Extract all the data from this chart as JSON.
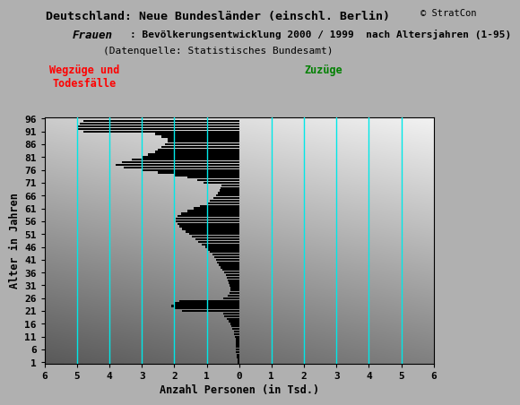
{
  "title1": "Deutschland: Neue Bundesländer (einschl. Berlin)",
  "title2_bold": "Frauen",
  "title2_rest": ": Bevölkerungsentwicklung 2000 / 1999  nach Altersjahren (1-95)",
  "title3": "(Datenquelle: Statistisches Bundesamt)",
  "xlabel": "Anzahl Personen (in Tsd.)",
  "ylabel": "Alter in Jahren",
  "label_left": "Wegzüge und\nTodesfälle",
  "label_right": "Zuzüge",
  "copyright": "© StratCon",
  "xlim": [
    -6.0,
    6.0
  ],
  "ylim": [
    0.5,
    96.5
  ],
  "xticks": [
    -6,
    -5,
    -4,
    -3,
    -2,
    -1,
    0,
    1,
    2,
    3,
    4,
    5,
    6
  ],
  "yticks": [
    1,
    6,
    11,
    16,
    21,
    26,
    31,
    36,
    41,
    46,
    51,
    56,
    61,
    66,
    71,
    76,
    81,
    86,
    91,
    96
  ],
  "bg_color": "#b0b0b0",
  "bar_color": "#000000",
  "cyan_color": "#00e8e8",
  "cyan_lines_x": [
    -5,
    -4,
    -3,
    -2,
    -1,
    1,
    2,
    3,
    4,
    5
  ],
  "values": [
    -0.05,
    -0.06,
    -0.07,
    -0.08,
    -0.09,
    -0.1,
    -0.1,
    -0.1,
    -0.1,
    -0.11,
    -0.13,
    -0.15,
    -0.17,
    -0.2,
    -0.23,
    -0.27,
    -0.32,
    -0.38,
    -0.45,
    -0.5,
    -1.75,
    -2.0,
    -2.1,
    -2.0,
    -1.85,
    -0.5,
    -0.35,
    -0.3,
    -0.28,
    -0.28,
    -0.3,
    -0.32,
    -0.35,
    -0.38,
    -0.42,
    -0.47,
    -0.52,
    -0.57,
    -0.62,
    -0.67,
    -0.72,
    -0.77,
    -0.83,
    -0.9,
    -0.97,
    -1.05,
    -1.15,
    -1.25,
    -1.35,
    -1.45,
    -1.55,
    -1.65,
    -1.75,
    -1.85,
    -1.9,
    -1.95,
    -1.95,
    -1.9,
    -1.8,
    -1.6,
    -1.4,
    -1.2,
    -1.0,
    -0.9,
    -0.8,
    -0.7,
    -0.65,
    -0.6,
    -0.58,
    -0.55,
    -1.1,
    -1.3,
    -1.6,
    -2.0,
    -2.5,
    -3.0,
    -3.55,
    -3.8,
    -3.6,
    -3.3,
    -3.0,
    -2.8,
    -2.6,
    -2.5,
    -2.4,
    -2.3,
    -2.2,
    -2.2,
    -2.4,
    -2.6,
    -4.8,
    -5.0,
    -5.0,
    -4.9,
    -4.8
  ]
}
